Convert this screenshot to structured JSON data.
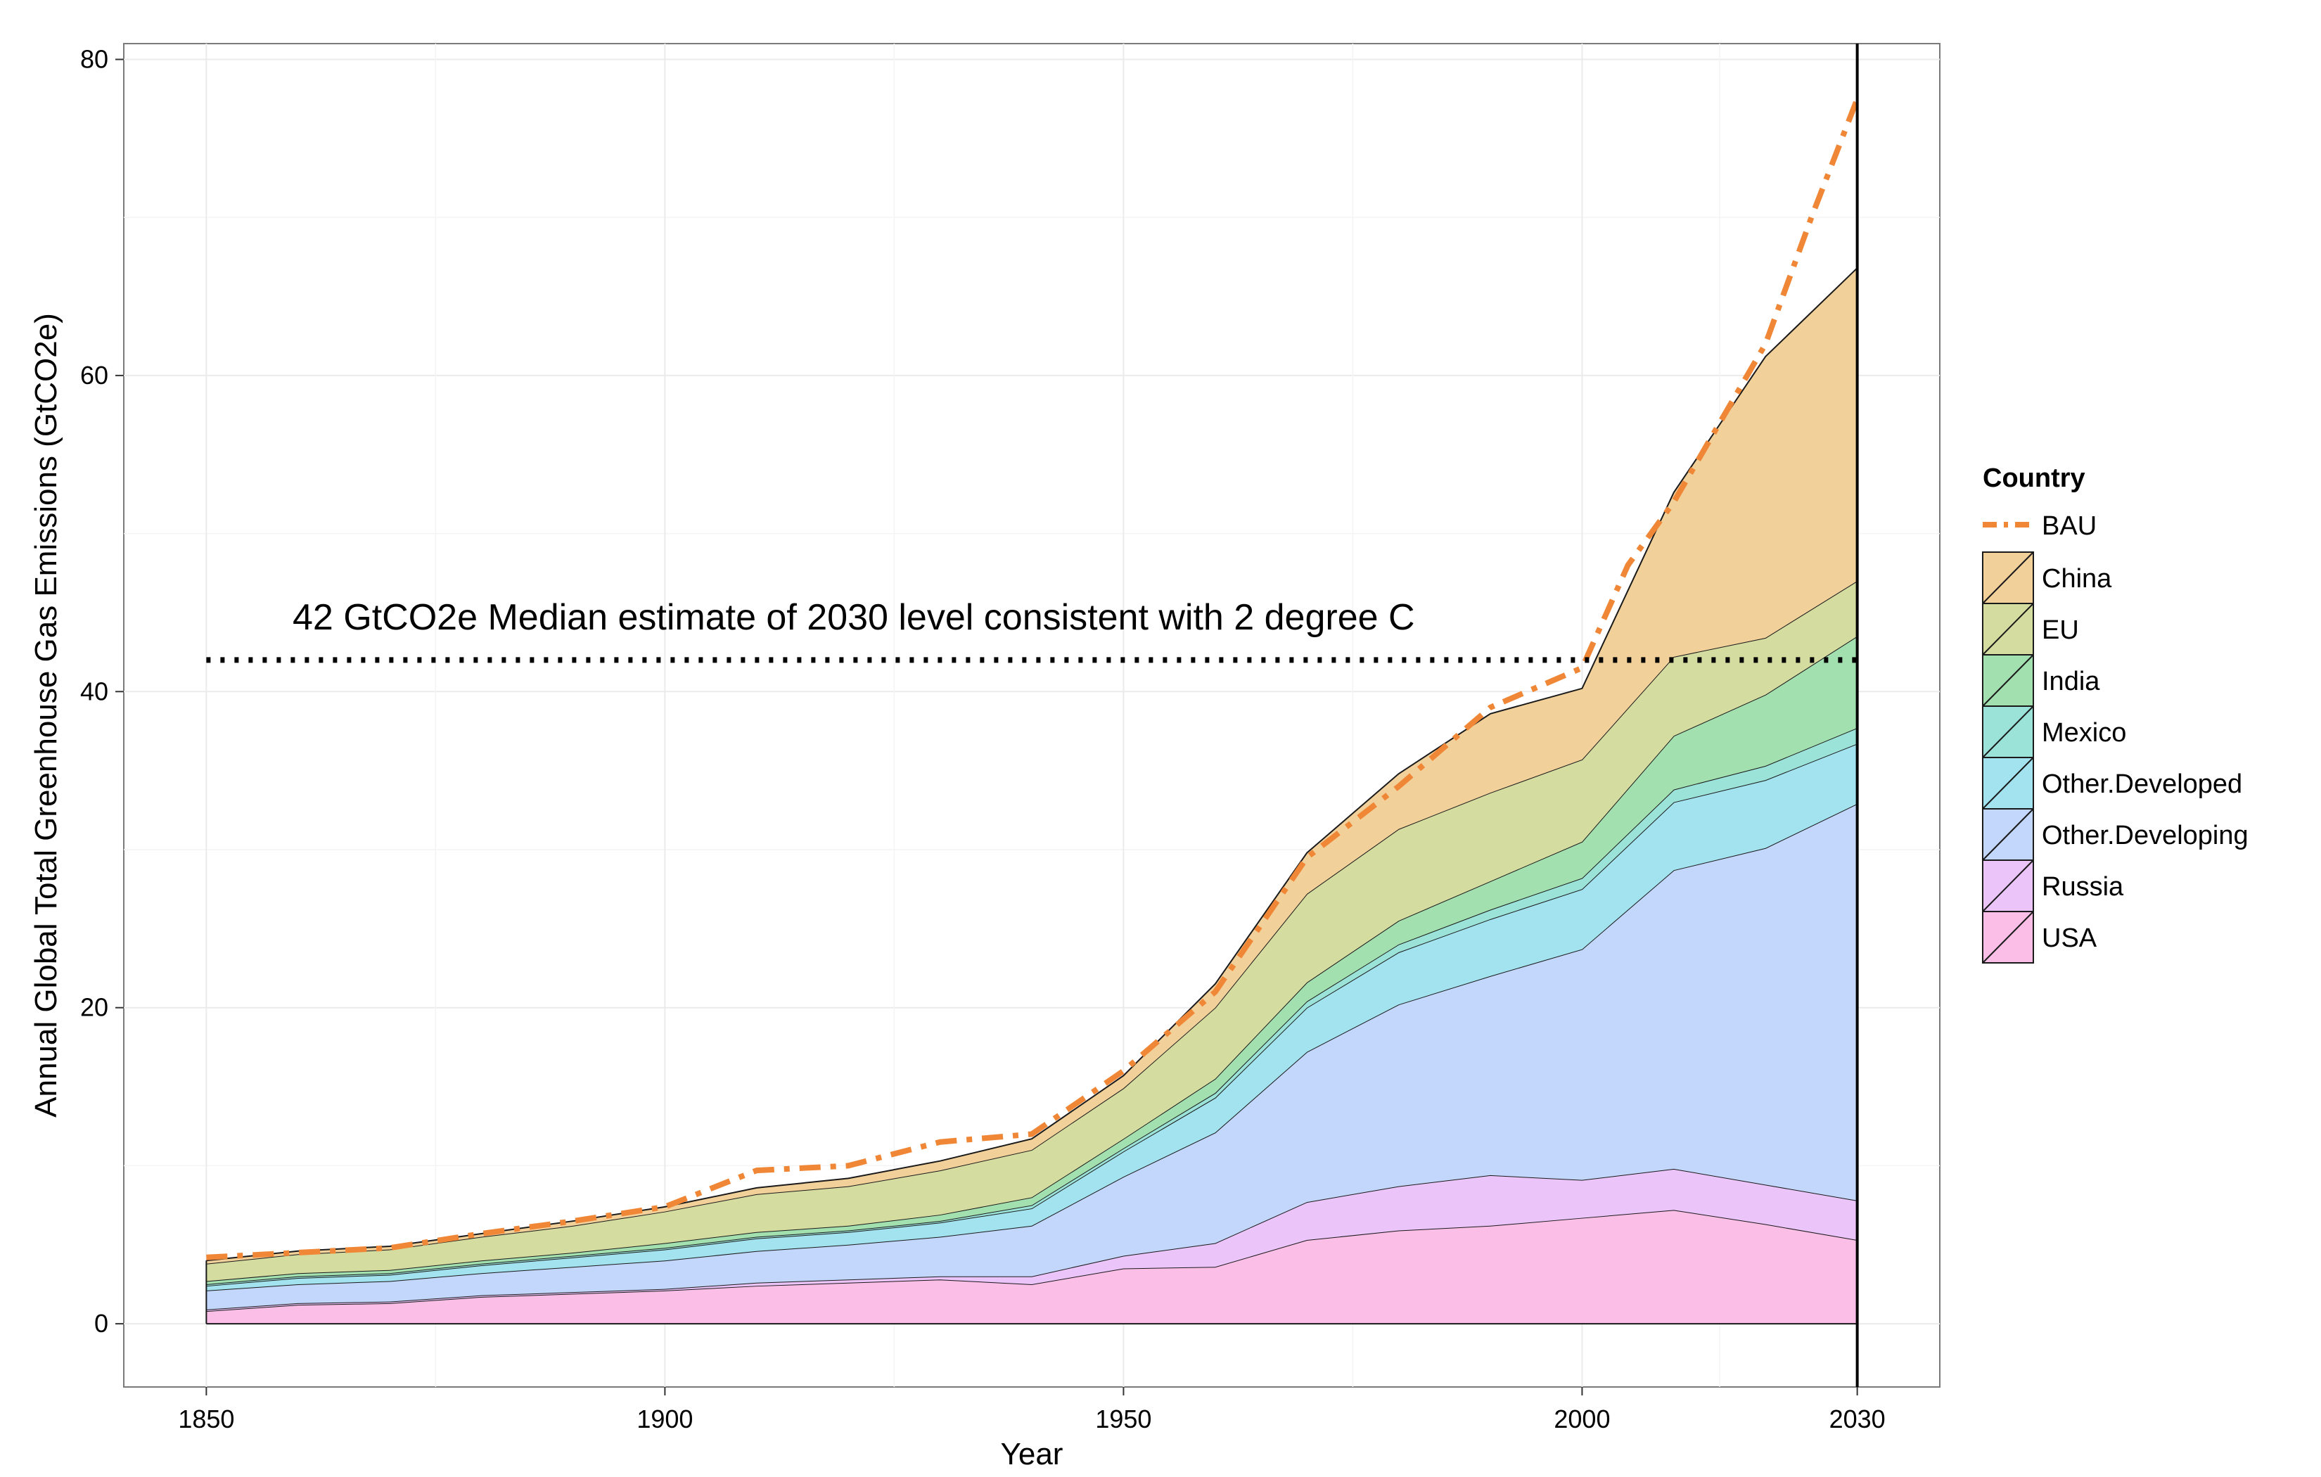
{
  "chart_data": {
    "type": "area",
    "stacked": true,
    "xlabel": "Year",
    "ylabel": "Annual Global Total Greenhouse Gas Emissions (GtCO2e)",
    "xlim": [
      1841,
      2039
    ],
    "ylim": [
      -4,
      81
    ],
    "x_ticks": [
      1850,
      1900,
      1950,
      2000,
      2030
    ],
    "x_tick_labels": [
      "1850",
      "1900",
      "1950",
      "2000",
      "2030"
    ],
    "y_ticks": [
      0,
      20,
      40,
      60,
      80
    ],
    "y_tick_labels": [
      "0",
      "20",
      "40",
      "60",
      "80"
    ],
    "grid": true,
    "legend_title": "Country",
    "legend_position": "right",
    "x": [
      1850,
      1860,
      1870,
      1880,
      1890,
      1900,
      1910,
      1920,
      1930,
      1940,
      1950,
      1960,
      1970,
      1980,
      1990,
      2000,
      2010,
      2020,
      2030
    ],
    "series": [
      {
        "name": "USA",
        "color": "#FBBFE7",
        "values": [
          0.8,
          1.2,
          1.3,
          1.7,
          1.9,
          2.1,
          2.4,
          2.6,
          2.8,
          2.5,
          3.5,
          3.6,
          5.3,
          5.9,
          6.2,
          6.7,
          7.2,
          6.3,
          5.3
        ]
      },
      {
        "name": "Russia",
        "color": "#EBC4F9",
        "values": [
          0.1,
          0.1,
          0.1,
          0.1,
          0.1,
          0.1,
          0.2,
          0.2,
          0.2,
          0.5,
          0.8,
          1.5,
          2.4,
          2.8,
          3.2,
          2.4,
          2.6,
          2.5,
          2.5
        ]
      },
      {
        "name": "Other.Developing",
        "color": "#C2D7FB",
        "values": [
          1.2,
          1.2,
          1.3,
          1.4,
          1.6,
          1.8,
          2.0,
          2.2,
          2.5,
          3.2,
          5.0,
          7.0,
          9.5,
          11.5,
          12.6,
          14.6,
          18.9,
          21.3,
          25.1
        ]
      },
      {
        "name": "Other.Developed",
        "color": "#A3E3EF",
        "values": [
          0.3,
          0.4,
          0.4,
          0.5,
          0.6,
          0.7,
          0.8,
          0.8,
          0.9,
          1.1,
          1.6,
          2.2,
          2.8,
          3.3,
          3.6,
          3.8,
          4.3,
          4.3,
          3.8
        ]
      },
      {
        "name": "Mexico",
        "color": "#9BE3D9",
        "values": [
          0.1,
          0.1,
          0.1,
          0.1,
          0.1,
          0.1,
          0.1,
          0.1,
          0.1,
          0.2,
          0.2,
          0.3,
          0.4,
          0.5,
          0.6,
          0.7,
          0.8,
          0.9,
          1.0
        ]
      },
      {
        "name": "India",
        "color": "#A2E0B0",
        "values": [
          0.2,
          0.2,
          0.2,
          0.2,
          0.2,
          0.3,
          0.3,
          0.3,
          0.4,
          0.5,
          0.6,
          0.9,
          1.2,
          1.5,
          1.8,
          2.3,
          3.4,
          4.5,
          5.8
        ]
      },
      {
        "name": "EU",
        "color": "#D5DCA0",
        "values": [
          1.1,
          1.2,
          1.3,
          1.5,
          1.7,
          2.0,
          2.4,
          2.5,
          2.8,
          3.0,
          3.2,
          4.5,
          5.6,
          5.8,
          5.6,
          5.2,
          5.0,
          3.6,
          3.5
        ]
      },
      {
        "name": "China",
        "color": "#F1D09A",
        "values": [
          0.2,
          0.2,
          0.2,
          0.2,
          0.3,
          0.3,
          0.4,
          0.5,
          0.6,
          0.7,
          0.8,
          1.5,
          2.6,
          3.5,
          5.0,
          4.5,
          10.4,
          17.8,
          19.8
        ]
      }
    ],
    "bau": {
      "name": "BAU",
      "color": "#F08737",
      "x": [
        1850,
        1860,
        1870,
        1880,
        1890,
        1900,
        1910,
        1920,
        1930,
        1940,
        1950,
        1960,
        1970,
        1980,
        1990,
        2000,
        2005,
        2010,
        2015,
        2020,
        2025,
        2030
      ],
      "values": [
        4.2,
        4.5,
        4.8,
        5.7,
        6.5,
        7.4,
        9.7,
        10.0,
        11.5,
        12.0,
        16.0,
        21.0,
        29.5,
        34.0,
        39.0,
        41.5,
        48.0,
        52.0,
        57.0,
        62.0,
        70.0,
        77.5
      ]
    },
    "reference_line": {
      "y": 42,
      "style": "dotted",
      "label": "42 GtCO2e Median estimate of 2030 level consistent with 2 degree C"
    },
    "vertical_line": {
      "x": 2030
    }
  }
}
